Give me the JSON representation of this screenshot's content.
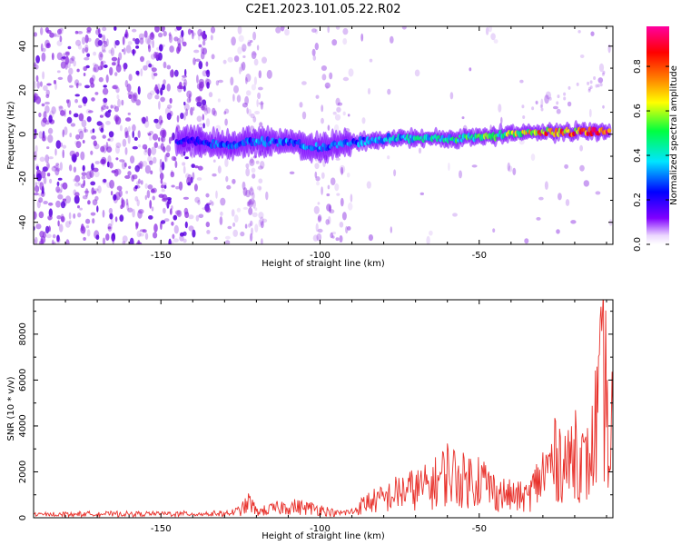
{
  "title": "C2E1.2023.101.05.22.R02",
  "colors": {
    "snr_line": "#e8302a",
    "ridge_low": "#7a00ff",
    "scatter": "#8a2be2"
  },
  "chart_data": [
    {
      "type": "heatmap",
      "xlabel": "Height of straight line (km)",
      "ylabel": "Frequency (Hz)",
      "xlim": [
        -190,
        -8
      ],
      "ylim": [
        -50,
        49
      ],
      "xticks": [
        -150,
        -100,
        -50
      ],
      "yticks": [
        -40,
        -20,
        0,
        20,
        40
      ],
      "colorbar": {
        "label": "Normalized spectral amplitude",
        "range": [
          0,
          0.98
        ],
        "ticks": [
          0.0,
          0.2,
          0.4,
          0.6,
          0.8
        ],
        "colormap": [
          "#ffffff",
          "#8000ff",
          "#0000ff",
          "#00e5ff",
          "#00ff40",
          "#ffff00",
          "#ff8000",
          "#ff0000",
          "#ff00a0"
        ]
      },
      "ridge": {
        "x": [
          -140,
          -130,
          -120,
          -110,
          -100,
          -90,
          -80,
          -70,
          -60,
          -50,
          -40,
          -30,
          -20,
          -10
        ],
        "freq": [
          -3,
          -5,
          -3,
          -4,
          -6,
          -4,
          -2,
          -2,
          -2,
          -1,
          0,
          1,
          1,
          1
        ],
        "peak_amplitude": [
          0.25,
          0.35,
          0.35,
          0.35,
          0.35,
          0.35,
          0.4,
          0.45,
          0.5,
          0.55,
          0.6,
          0.8,
          0.85,
          0.9
        ]
      }
    },
    {
      "type": "line",
      "xlabel": "Height of straight line (km)",
      "ylabel": "SNR (10 * v/v)",
      "xlim": [
        -190,
        -8
      ],
      "ylim": [
        0,
        9500
      ],
      "xticks": [
        -150,
        -100,
        -50
      ],
      "yticks": [
        0,
        2000,
        4000,
        6000,
        8000
      ],
      "series": [
        {
          "x": [
            -190,
            -180,
            -170,
            -160,
            -150,
            -140,
            -130,
            -125,
            -122,
            -120,
            -115,
            -110,
            -105,
            -100,
            -95,
            -90,
            -85,
            -80,
            -75,
            -70,
            -65,
            -60,
            -55,
            -50,
            -45,
            -40,
            -35,
            -30,
            -25,
            -22,
            -20,
            -17,
            -15,
            -13,
            -11,
            -10,
            -9,
            -8
          ],
          "y": [
            180,
            200,
            220,
            210,
            230,
            220,
            240,
            500,
            1100,
            400,
            600,
            800,
            700,
            600,
            300,
            400,
            1100,
            1300,
            1800,
            2000,
            2200,
            3200,
            2600,
            2800,
            1800,
            1500,
            1400,
            3000,
            4300,
            3500,
            5200,
            3500,
            4000,
            7000,
            9300,
            8500,
            3000,
            7500
          ]
        }
      ]
    }
  ]
}
